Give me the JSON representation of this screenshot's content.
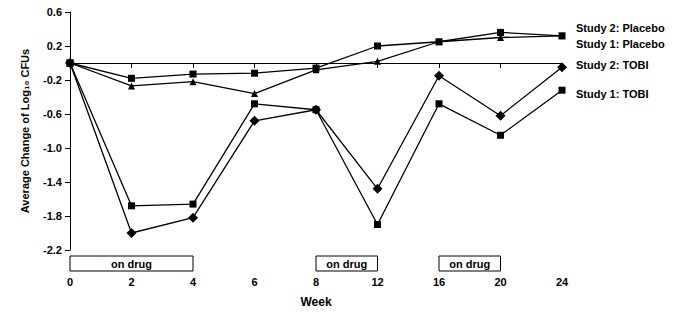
{
  "chart_data": {
    "type": "line",
    "x_label": "Week",
    "y_label": "Average Change of Log₁₀ CFUs",
    "categories": [
      "0",
      "2",
      "4",
      "6",
      "8",
      "12",
      "16",
      "20",
      "24"
    ],
    "series": [
      {
        "name": "Study 1: TOBI",
        "color": "#000000",
        "marker": "square",
        "line_style": "solid",
        "values": [
          0,
          -1.68,
          -1.66,
          -0.48,
          -0.55,
          -1.9,
          -0.48,
          -0.85,
          -0.32
        ]
      },
      {
        "name": "Study 2: TOBI",
        "color": "#000000",
        "marker": "diamond",
        "line_style": "solid",
        "values": [
          0,
          -2.0,
          -1.82,
          -0.68,
          -0.55,
          -1.48,
          -0.15,
          -0.62,
          -0.05
        ]
      },
      {
        "name": "Study 1: Placebo",
        "color": "#000000",
        "marker": "triangle",
        "line_style": "solid",
        "values": [
          0,
          -0.27,
          -0.22,
          -0.36,
          -0.08,
          0.02,
          0.25,
          0.3,
          0.32
        ]
      },
      {
        "name": "Study 2: Placebo",
        "color": "#000000",
        "marker": "square",
        "line_style": "solid",
        "values": [
          0,
          -0.18,
          -0.13,
          -0.12,
          -0.06,
          0.2,
          0.25,
          0.36,
          0.32
        ]
      }
    ],
    "ylim": [
      -2.2,
      0.6
    ],
    "yticks": [
      -2.2,
      -1.8,
      -1.4,
      {
        "value": -1,
        "label": "-1.0"
      },
      -0.6,
      -0.2,
      0.2,
      0.6
    ],
    "reference_line": {
      "y": 0,
      "line_style": "dashed"
    },
    "annotations": [
      {
        "text": "on drug",
        "from": "0",
        "to": "4"
      },
      {
        "text": "on drug",
        "from": "8",
        "to": "12"
      },
      {
        "text": "on drug",
        "from": "16",
        "to": "20"
      }
    ],
    "grid": false
  }
}
